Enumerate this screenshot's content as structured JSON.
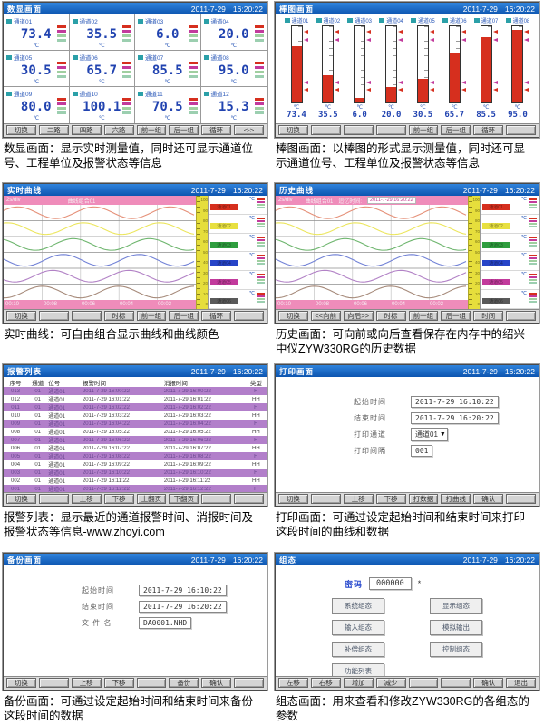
{
  "datetime": {
    "date": "2011-7-29",
    "time": "16:20:22"
  },
  "alarm_colors": [
    "#d62f1e",
    "#c23a9c",
    "#a0cfa0",
    "#9ccfb0"
  ],
  "curve_colors": [
    "#e59078",
    "#ece65e",
    "#6db56d",
    "#7282d6",
    "#b282c6",
    "#a68a7a"
  ],
  "curve_channels": [
    {
      "label": "通道01",
      "value": "73.4",
      "unit": "℃",
      "color": "#d62f1e"
    },
    {
      "label": "通道02",
      "value": "35.5",
      "unit": "℃",
      "color": "#e8e040"
    },
    {
      "label": "通道03",
      "value": "6.0",
      "unit": "℃",
      "color": "#2f9e3f"
    },
    {
      "label": "通道04",
      "value": "20.0",
      "unit": "℃",
      "color": "#2744c8"
    },
    {
      "label": "通道05",
      "value": "30.5",
      "unit": "℃",
      "color": "#c23a9c"
    },
    {
      "label": "通道06",
      "value": "65.7",
      "unit": "℃",
      "color": "#5a5a5a"
    }
  ],
  "curve_times": [
    "00:10",
    "00:08",
    "00:06",
    "00:04",
    "00:02"
  ],
  "scale_labels": [
    "100",
    "90",
    "80",
    "70",
    "60",
    "50",
    "40",
    "30",
    "20",
    "10",
    "0"
  ],
  "panels": {
    "digital": {
      "title": "数显画面",
      "unit": "℃",
      "channels": [
        {
          "label": "通道01",
          "value": "73.4"
        },
        {
          "label": "通道02",
          "value": "35.5"
        },
        {
          "label": "通道03",
          "value": "6.0"
        },
        {
          "label": "通道04",
          "value": "20.0"
        },
        {
          "label": "通道05",
          "value": "30.5"
        },
        {
          "label": "通道06",
          "value": "65.7"
        },
        {
          "label": "通道07",
          "value": "85.5"
        },
        {
          "label": "通道08",
          "value": "95.0"
        },
        {
          "label": "通道09",
          "value": "80.0"
        },
        {
          "label": "通道10",
          "value": "100.1"
        },
        {
          "label": "通道11",
          "value": "70.5"
        },
        {
          "label": "通道12",
          "value": "15.3"
        }
      ],
      "buttons": [
        "切换",
        "二路",
        "四路",
        "六路",
        "前一组",
        "后一组",
        "循环",
        "<->"
      ]
    },
    "bar": {
      "title": "棒图画面",
      "unit": "℃",
      "channels": [
        {
          "label": "通道01",
          "value": "73.4",
          "percent": 73.4
        },
        {
          "label": "通道02",
          "value": "35.5",
          "percent": 35.5
        },
        {
          "label": "通道03",
          "value": "6.0",
          "percent": 6
        },
        {
          "label": "通道04",
          "value": "20.0",
          "percent": 20
        },
        {
          "label": "通道05",
          "value": "30.5",
          "percent": 30.5
        },
        {
          "label": "通道06",
          "value": "65.7",
          "percent": 65.7
        },
        {
          "label": "通道07",
          "value": "85.5",
          "percent": 85.5
        },
        {
          "label": "通道08",
          "value": "95.0",
          "percent": 95
        }
      ],
      "buttons": [
        "切换",
        "",
        "",
        "",
        "前一组",
        "后一组",
        "循环",
        ""
      ]
    },
    "realtime": {
      "title": "实时曲线",
      "timebase": "2s/div",
      "group": "曲线组合01",
      "buttons": [
        "切换",
        "",
        "",
        "时标",
        "前一组",
        "后一组",
        "循环",
        ""
      ]
    },
    "history": {
      "title": "历史曲线",
      "timebase": "2s/div",
      "group": "曲线组合01",
      "recall_label": "追忆时间:",
      "recall_time": "2011-7-29 16:20:22",
      "buttons": [
        "切换",
        "<<向前",
        "向后>>",
        "时标",
        "前一组",
        "后一组",
        "时间",
        ""
      ]
    },
    "alarm": {
      "title": "报警列表",
      "headers": [
        "序号",
        "通道",
        "位号",
        "报警时间",
        "消报时间",
        "类型"
      ],
      "rows": [
        [
          "013",
          "01",
          "通道01",
          "2011-7-29 16:00:22",
          "2011-7-29 16:00:22",
          "H"
        ],
        [
          "012",
          "01",
          "通道01",
          "2011-7-29 16:01:22",
          "2011-7-29 16:01:22",
          "HH"
        ],
        [
          "011",
          "01",
          "通道01",
          "2011-7-29 16:02:22",
          "2011-7-29 16:02:22",
          "H"
        ],
        [
          "010",
          "01",
          "通道01",
          "2011-7-29 16:03:22",
          "2011-7-29 16:03:22",
          "HH"
        ],
        [
          "009",
          "01",
          "通道01",
          "2011-7-29 16:04:22",
          "2011-7-29 16:04:22",
          "H"
        ],
        [
          "008",
          "01",
          "通道01",
          "2011-7-29 16:05:22",
          "2011-7-29 16:05:22",
          "HH"
        ],
        [
          "007",
          "01",
          "通道01",
          "2011-7-29 16:06:22",
          "2011-7-29 16:06:22",
          "H"
        ],
        [
          "006",
          "01",
          "通道01",
          "2011-7-29 16:07:22",
          "2011-7-29 16:07:22",
          "HH"
        ],
        [
          "005",
          "01",
          "通道01",
          "2011-7-29 16:08:22",
          "2011-7-29 16:08:22",
          "H"
        ],
        [
          "004",
          "01",
          "通道01",
          "2011-7-29 16:09:22",
          "2011-7-29 16:09:22",
          "HH"
        ],
        [
          "003",
          "01",
          "通道01",
          "2011-7-29 16:10:22",
          "2011-7-29 16:10:22",
          "H"
        ],
        [
          "002",
          "01",
          "通道01",
          "2011-7-29 16:11:22",
          "2011-7-29 16:11:22",
          "HH"
        ],
        [
          "001",
          "01",
          "通道01",
          "2011-7-29 16:12:22",
          "2011-7-29 16:12:22",
          "H"
        ]
      ],
      "tags": [
        "01R",
        "02R",
        "03R",
        "04R",
        "05R",
        "06R",
        "07R",
        "08R",
        "09R",
        "10R",
        "11R",
        "12R",
        "13R",
        "14R",
        "15R",
        "16R",
        "17R",
        "18R"
      ],
      "buttons": [
        "切换",
        "",
        "上移",
        "下移",
        "上翻页",
        "下翻页",
        "",
        ""
      ]
    },
    "print": {
      "title": "打印画面",
      "fields": [
        {
          "label": "起始时间",
          "value": "2011-7-29  16:10:22"
        },
        {
          "label": "结束时间",
          "value": "2011-7-29  16:20:22"
        },
        {
          "label": "打印通道",
          "value": "通道01"
        },
        {
          "label": "打印间隔",
          "value": "001"
        }
      ],
      "buttons": [
        "切换",
        "",
        "上移",
        "下移",
        "打数据",
        "打曲线",
        "确认",
        ""
      ]
    },
    "backup": {
      "title": "备份画面",
      "fields": [
        {
          "label": "起始时间",
          "value": "2011-7-29  16:10:22"
        },
        {
          "label": "结束时间",
          "value": "2011-7-29  16:20:22"
        },
        {
          "label": "文 件 名",
          "value": "DA0001.NHD"
        }
      ],
      "buttons": [
        "切换",
        "",
        "上移",
        "下移",
        "",
        "备份",
        "确认",
        ""
      ]
    },
    "config": {
      "title": "组态",
      "password_label": "密码",
      "password_value": "000000",
      "password_suffix": "*",
      "menu_left": [
        "系统组态",
        "输入组态",
        "补偿组态",
        "功能列表"
      ],
      "menu_right": [
        "显示组态",
        "模拟输出",
        "控制组态"
      ],
      "buttons": [
        "左移",
        "右移",
        "增加",
        "减少",
        "",
        "",
        "确认",
        "退出"
      ]
    }
  },
  "captions": {
    "digital": "数显画面：显示实时测量值，同时还可显示通道位号、工程单位及报警状态等信息",
    "bar": "棒图画面：以棒图的形式显示测量值，同时还可显示通道位号、工程单位及报警状态等信息",
    "realtime": "实时曲线：可自由组合显示曲线和曲线颜色",
    "history": "历史画面：可向前或向后查看保存在内存中的绍兴中仪ZYW330RG的历史数据",
    "alarm": "报警列表：显示最近的通道报警时间、消报时间及报警状态等信息-www.zhoyi.com",
    "print": "打印画面：可通过设定起始时间和结束时间来打印这段时间的曲线和数据",
    "backup": "备份画面：可通过设定起始时间和结束时间来备份这段时间的数据",
    "config": "组态画面：用来查看和修改ZYW330RG的各组态的参数"
  }
}
